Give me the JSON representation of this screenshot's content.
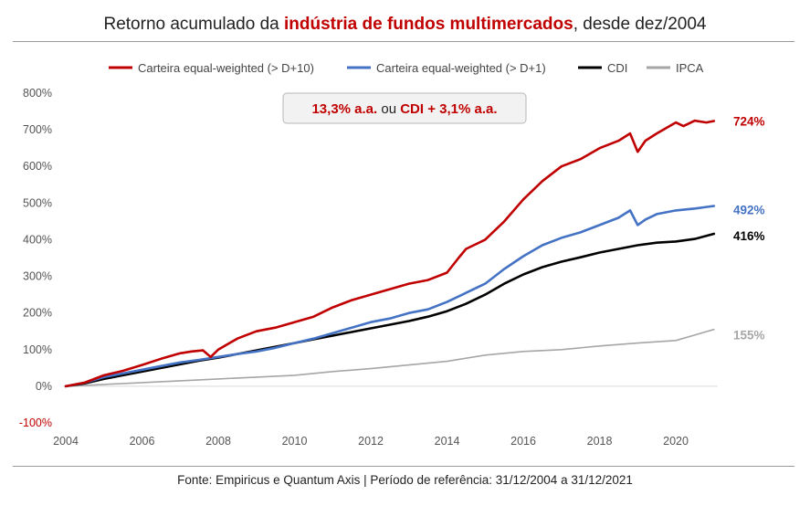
{
  "header": {
    "title_before": "Retorno acumulado da ",
    "title_highlight": "indústria de fundos multimercados",
    "title_after": ", desde dez/2004"
  },
  "callout": {
    "part1": "13,3% a.a.",
    "part2": " ou ",
    "part3": "CDI + 3,1% a.a."
  },
  "footer": {
    "text": "Fonte: Empiricus e Quantum Axis | Período de referência: 31/12/2004 a 31/12/2021"
  },
  "colors": {
    "red": "#c00000",
    "blue": "#4472c4",
    "black": "#000000",
    "gray": "#a6a6a6"
  },
  "chart_data": {
    "type": "line",
    "title": "Retorno acumulado da indústria de fundos multimercados, desde dez/2004",
    "xlabel": "",
    "ylabel": "",
    "xlim": [
      2004,
      2021.1
    ],
    "ylim": [
      -100,
      800
    ],
    "x_ticks": [
      "2004",
      "2006",
      "2008",
      "2010",
      "2012",
      "2014",
      "2016",
      "2018",
      "2020"
    ],
    "y_ticks": [
      "-100%",
      "0%",
      "100%",
      "200%",
      "300%",
      "400%",
      "500%",
      "600%",
      "700%",
      "800%"
    ],
    "grid": false,
    "legend_position": "top",
    "series": [
      {
        "name": "Carteira equal-weighted (> D+10)",
        "color": "#c00000",
        "end_label": "724%",
        "x": [
          2004.0,
          2004.5,
          2005.0,
          2005.5,
          2006.0,
          2006.5,
          2007.0,
          2007.3,
          2007.6,
          2007.8,
          2008.0,
          2008.5,
          2009.0,
          2009.5,
          2010.0,
          2010.5,
          2011.0,
          2011.5,
          2012.0,
          2012.5,
          2013.0,
          2013.5,
          2014.0,
          2014.3,
          2014.5,
          2014.8,
          2015.0,
          2015.5,
          2016.0,
          2016.5,
          2017.0,
          2017.5,
          2018.0,
          2018.5,
          2018.8,
          2019.0,
          2019.2,
          2019.5,
          2020.0,
          2020.2,
          2020.5,
          2020.8,
          2021.0
        ],
        "values": [
          0,
          10,
          30,
          42,
          58,
          75,
          90,
          95,
          98,
          80,
          100,
          130,
          150,
          160,
          175,
          190,
          215,
          235,
          250,
          265,
          280,
          290,
          310,
          350,
          375,
          390,
          400,
          450,
          510,
          560,
          600,
          620,
          650,
          670,
          690,
          640,
          670,
          690,
          720,
          710,
          725,
          720,
          724
        ]
      },
      {
        "name": "Carteira equal-weighted (> D+1)",
        "color": "#4472c4",
        "end_label": "492%",
        "x": [
          2004.0,
          2004.5,
          2005.0,
          2005.5,
          2006.0,
          2006.5,
          2007.0,
          2007.5,
          2008.0,
          2008.5,
          2009.0,
          2009.5,
          2010.0,
          2010.5,
          2011.0,
          2011.5,
          2012.0,
          2012.5,
          2013.0,
          2013.5,
          2014.0,
          2014.5,
          2015.0,
          2015.5,
          2016.0,
          2016.5,
          2017.0,
          2017.5,
          2018.0,
          2018.5,
          2018.8,
          2019.0,
          2019.2,
          2019.5,
          2020.0,
          2020.5,
          2021.0
        ],
        "values": [
          0,
          10,
          25,
          35,
          45,
          55,
          65,
          72,
          80,
          88,
          95,
          105,
          118,
          130,
          145,
          160,
          175,
          185,
          200,
          210,
          230,
          255,
          280,
          320,
          355,
          385,
          405,
          420,
          440,
          460,
          480,
          440,
          455,
          470,
          480,
          485,
          492
        ]
      },
      {
        "name": "CDI",
        "color": "#000000",
        "end_label": "416%",
        "x": [
          2004.0,
          2004.5,
          2005.0,
          2005.5,
          2006.0,
          2006.5,
          2007.0,
          2007.5,
          2008.0,
          2008.5,
          2009.0,
          2009.5,
          2010.0,
          2010.5,
          2011.0,
          2011.5,
          2012.0,
          2012.5,
          2013.0,
          2013.5,
          2014.0,
          2014.5,
          2015.0,
          2015.5,
          2016.0,
          2016.5,
          2017.0,
          2017.5,
          2018.0,
          2018.5,
          2019.0,
          2019.5,
          2020.0,
          2020.5,
          2021.0
        ],
        "values": [
          0,
          8,
          20,
          30,
          40,
          50,
          60,
          70,
          78,
          88,
          98,
          108,
          118,
          128,
          138,
          148,
          158,
          168,
          178,
          190,
          205,
          225,
          250,
          280,
          305,
          325,
          340,
          352,
          365,
          375,
          385,
          392,
          395,
          402,
          416
        ]
      },
      {
        "name": "IPCA",
        "color": "#a6a6a6",
        "end_label": "155%",
        "x": [
          2004.0,
          2005.0,
          2006.0,
          2007.0,
          2008.0,
          2009.0,
          2010.0,
          2011.0,
          2012.0,
          2013.0,
          2014.0,
          2015.0,
          2016.0,
          2017.0,
          2018.0,
          2019.0,
          2020.0,
          2021.0
        ],
        "values": [
          0,
          5,
          10,
          15,
          20,
          25,
          30,
          40,
          48,
          58,
          68,
          85,
          95,
          100,
          110,
          118,
          125,
          155
        ]
      }
    ]
  }
}
